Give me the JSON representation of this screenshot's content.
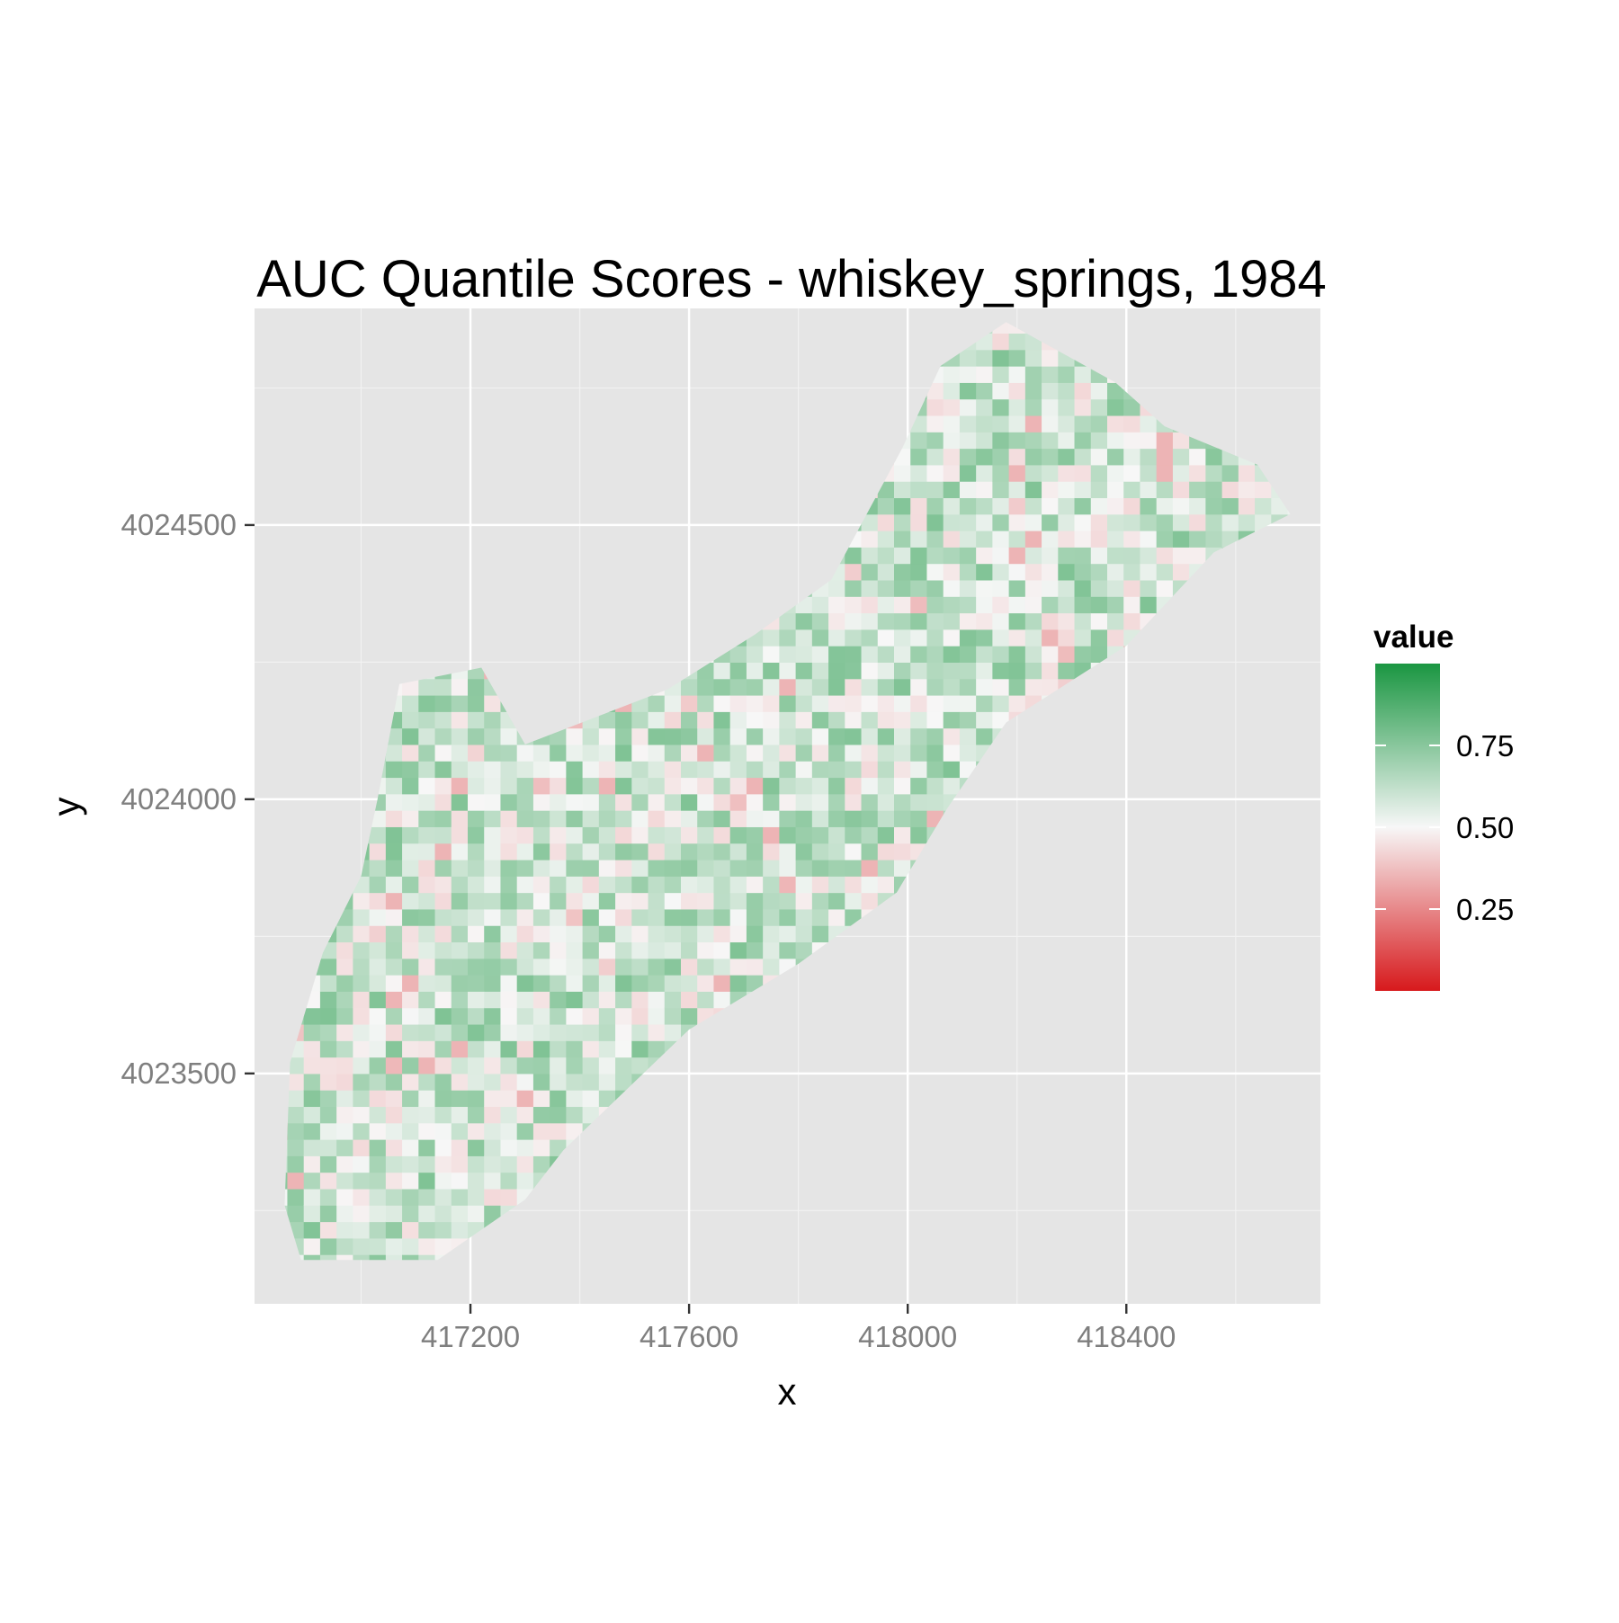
{
  "chart_data": {
    "type": "heatmap",
    "title": "AUC Quantile Scores - whiskey_springs, 1984",
    "xlabel": "x",
    "ylabel": "y",
    "xlim": [
      416805,
      418755
    ],
    "ylim": [
      4023080,
      4024895
    ],
    "x_ticks": [
      417200,
      417600,
      418000,
      418400
    ],
    "x_tick_labels": [
      "417200",
      "417600",
      "418000",
      "418400"
    ],
    "y_ticks": [
      4023500,
      4024000,
      4024500
    ],
    "y_tick_labels": [
      "4023500",
      "4024000",
      "4024500"
    ],
    "grid": true,
    "cell_size": 30,
    "legend": {
      "title": "value",
      "position": "right",
      "range": [
        0,
        1
      ],
      "breaks": [
        0.25,
        0.5,
        0.75
      ],
      "break_labels": [
        "0.25",
        "0.50",
        "0.75"
      ],
      "colors": {
        "low": "#d7191c",
        "mid": "#f7f7f7",
        "high": "#1a9641"
      }
    },
    "region_outline": [
      [
        416890,
        4023160
      ],
      [
        417140,
        4023160
      ],
      [
        417300,
        4023270
      ],
      [
        417370,
        4023360
      ],
      [
        417600,
        4023580
      ],
      [
        417800,
        4023700
      ],
      [
        417980,
        4023830
      ],
      [
        418070,
        4023980
      ],
      [
        418180,
        4024140
      ],
      [
        418400,
        4024280
      ],
      [
        418560,
        4024450
      ],
      [
        418700,
        4024520
      ],
      [
        418640,
        4024610
      ],
      [
        418470,
        4024680
      ],
      [
        418380,
        4024760
      ],
      [
        418180,
        4024870
      ],
      [
        418060,
        4024790
      ],
      [
        417990,
        4024640
      ],
      [
        417860,
        4024400
      ],
      [
        417720,
        4024300
      ],
      [
        417560,
        4024200
      ],
      [
        417300,
        4024100
      ],
      [
        417220,
        4024240
      ],
      [
        417070,
        4024210
      ],
      [
        417030,
        4024000
      ],
      [
        417000,
        4023860
      ],
      [
        416930,
        4023720
      ],
      [
        416870,
        4023520
      ],
      [
        416860,
        4023260
      ]
    ],
    "distribution": {
      "median": 0.6,
      "min": 0.35,
      "max": 0.85
    }
  }
}
